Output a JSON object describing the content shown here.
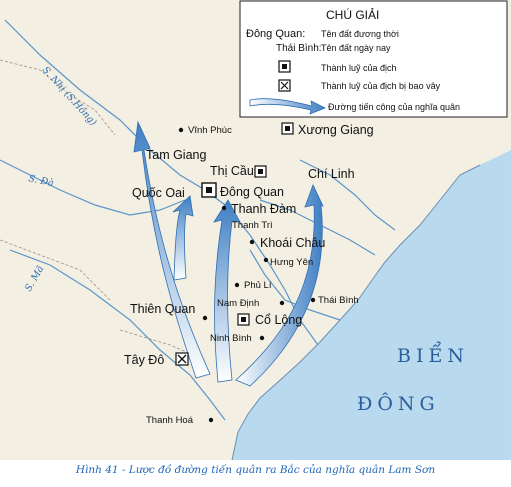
{
  "legend": {
    "title": "CHÚ GIẢI",
    "ancient_key": "Đông Quan:",
    "ancient_desc": "Tên đất đương thời",
    "modern_key": "Thái Bình:",
    "modern_desc": "Tên đất ngày nay",
    "citadel_desc": "Thành luỹ của địch",
    "besieged_desc": "Thành luỹ của địch bị bao vây",
    "route_desc": "Đường tiến công của nghĩa quân"
  },
  "rivers": {
    "nhi": "S. Nhị (S.Hồng)",
    "da": "S. Đà",
    "ma": "S. Mã"
  },
  "sea": {
    "line1": "BIỂN",
    "line2": "ĐÔNG"
  },
  "places": {
    "vinh_phuc": "Vĩnh Phúc",
    "tam_giang": "Tam Giang",
    "xuong_giang": "Xương Giang",
    "thi_cau": "Thị Cầu",
    "chi_linh": "Chí Linh",
    "quoc_oai": "Quốc Oai",
    "dong_quan": "Đông Quan",
    "thanh_dam": "Thanh Đàm",
    "thanh_tri": "Thanh Trì",
    "khoai_chau": "Khoái Châu",
    "hung_yen": "Hưng Yên",
    "phu_li": "Phủ Lí",
    "thien_quan": "Thiên Quan",
    "thai_binh": "Thái Bình",
    "nam_dinh": "Nam Định",
    "co_long": "Cổ Lộng",
    "ninh_binh": "Ninh Bình",
    "tay_do": "Tây Đô",
    "thanh_hoa": "Thanh Hoá"
  },
  "caption": {
    "figure": "Hình 41",
    "text": " - Lược đồ đường tiến quân ra Bắc của nghĩa quân Lam Sơn"
  },
  "colors": {
    "land": "#f3efe2",
    "sea": "#b9d9ee",
    "river": "#5b95c9",
    "arrow": "#3f7fc4",
    "caption": "#1e66b8"
  }
}
